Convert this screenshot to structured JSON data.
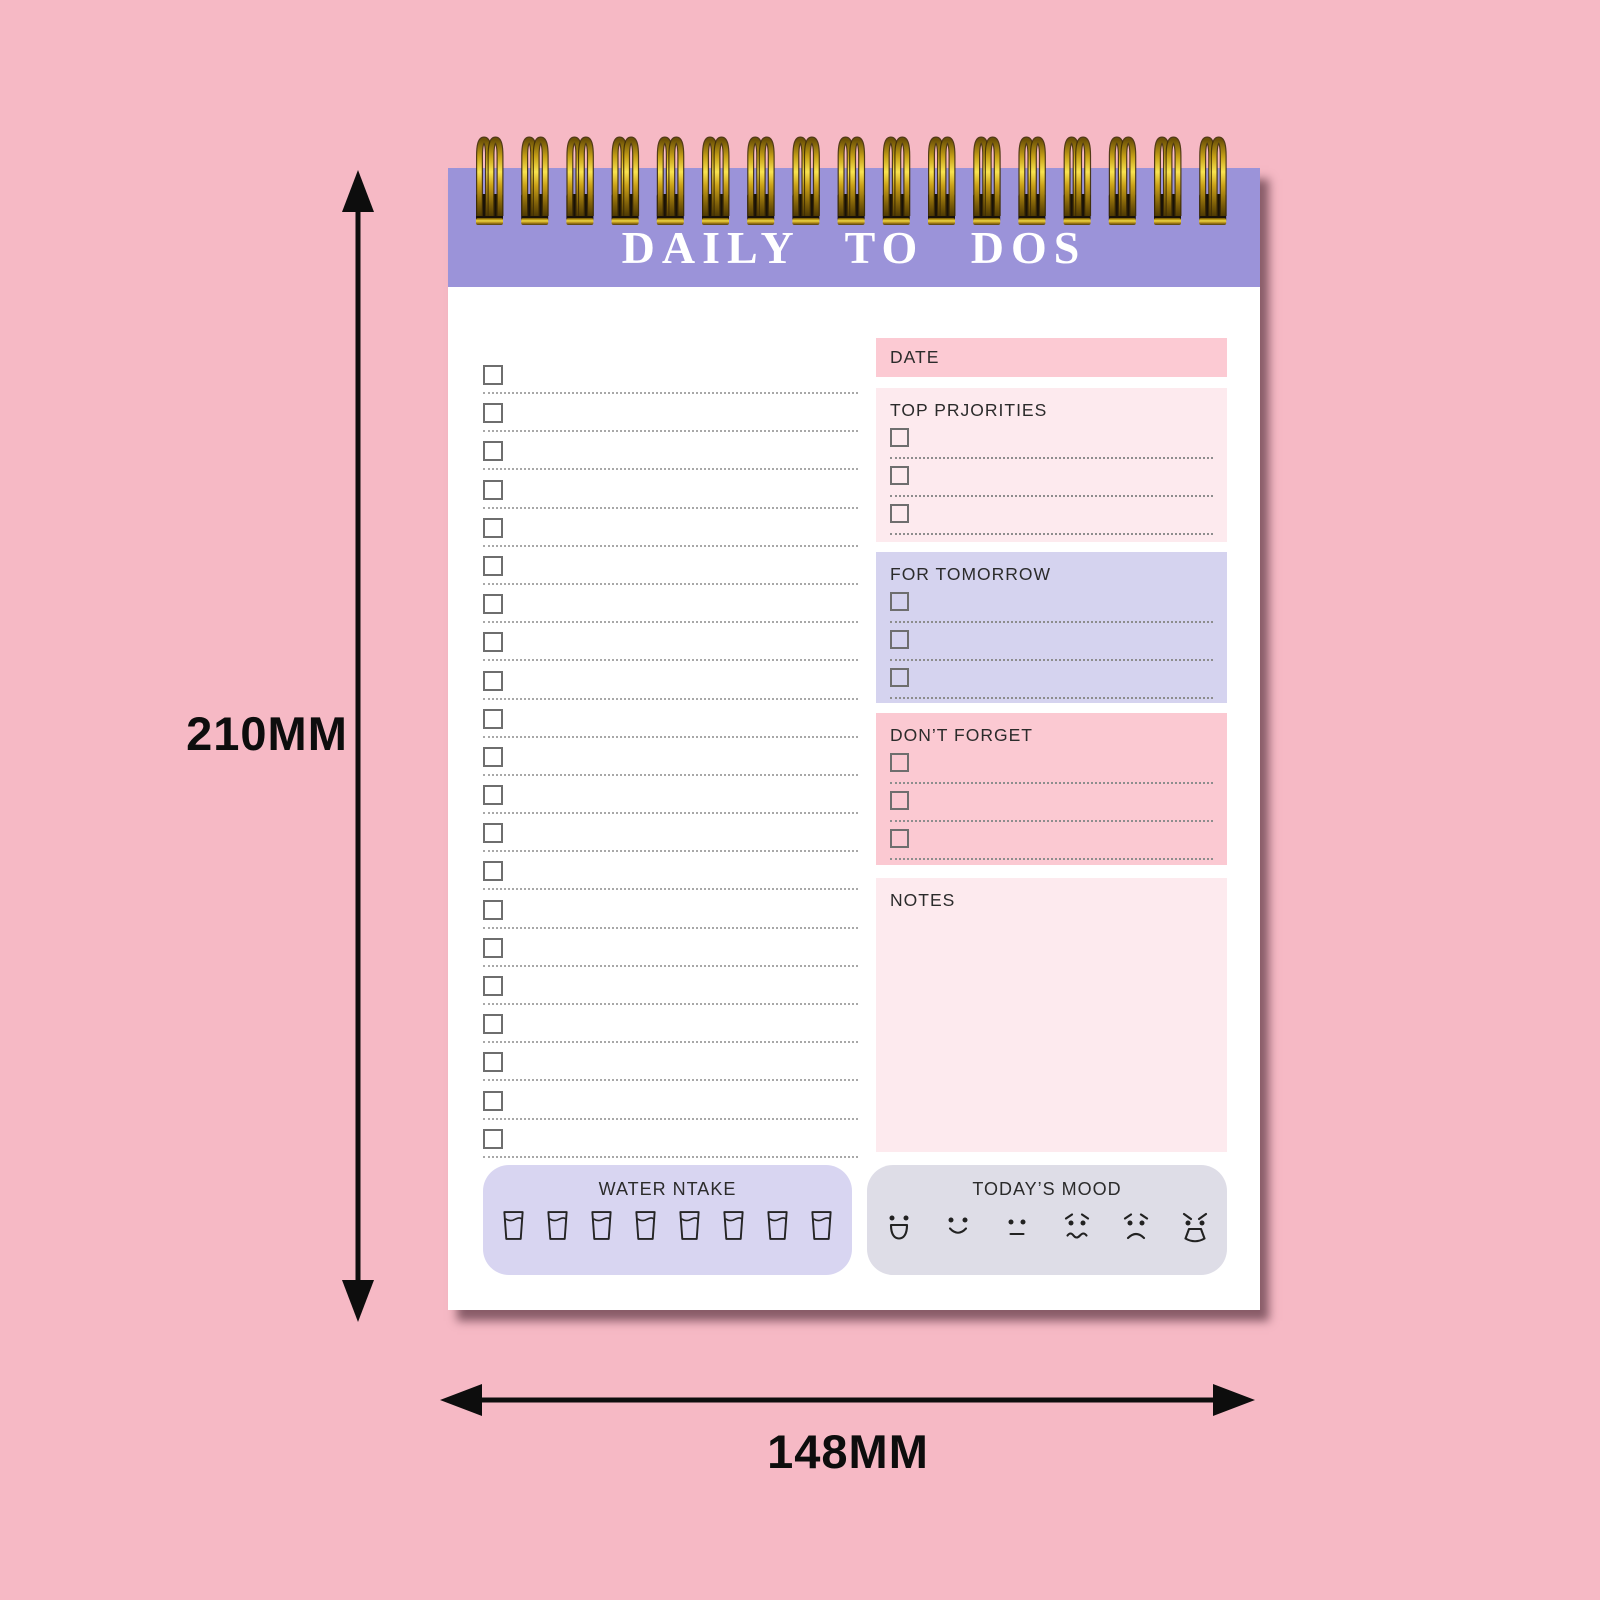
{
  "dimensions": {
    "height": "210MM",
    "width": "148MM"
  },
  "notepad": {
    "title": "DAILY TO DOS",
    "binding": {
      "coil_count": 17
    },
    "checklist": {
      "row_count": 21
    },
    "sections": {
      "date": {
        "label": "DATE"
      },
      "top_priorities": {
        "label": "TOP PRJORITIES",
        "row_count": 3
      },
      "for_tomorrow": {
        "label": "FOR TOMORROW",
        "row_count": 3
      },
      "dont_forget": {
        "label": "DON’T FORGET",
        "row_count": 3
      },
      "notes": {
        "label": "NOTES"
      },
      "water_intake": {
        "label": "WATER NTAKE",
        "cup_count": 8
      },
      "todays_mood": {
        "label": "TODAY’S MOOD",
        "moods": [
          "grinning",
          "smiling",
          "neutral",
          "worried",
          "sad",
          "angry"
        ]
      }
    }
  },
  "colors": {
    "background": "#f6b9c5",
    "band": "#9b93d9",
    "title_text": "#ffffff",
    "date_bar": "#fccad3",
    "soft_pink_box": "#fdeaee",
    "lavender_box": "#d5d3ef",
    "pink_box": "#fbc9d2",
    "water_box": "#d8d5f1",
    "mood_box": "#dedde7",
    "gold": "#f9e34f",
    "ink": "#2b2b2b",
    "dimension": "#0d0d0d"
  }
}
